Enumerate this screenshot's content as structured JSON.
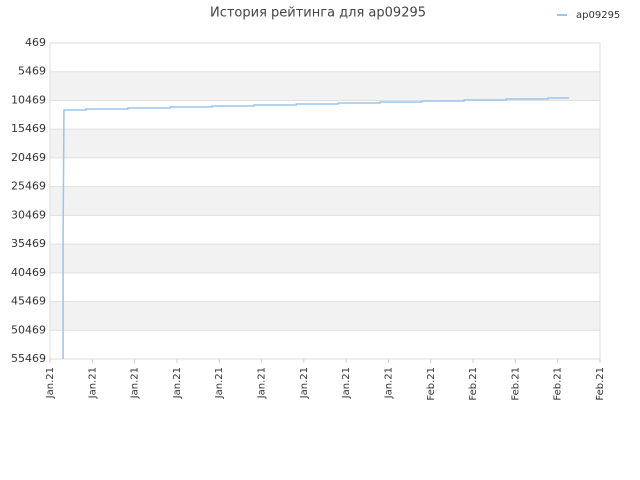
{
  "chart_data": {
    "type": "line",
    "title": "История рейтинга для ap09295",
    "x": [
      0.31,
      0.31,
      0.33,
      0.85,
      0.85,
      1.84,
      1.84,
      2.84,
      2.84,
      3.83,
      3.83,
      4.82,
      4.82,
      5.82,
      5.82,
      6.81,
      6.81,
      7.8,
      7.8,
      8.79,
      8.79,
      9.79,
      9.79,
      10.78,
      10.78,
      11.77,
      11.77,
      12.27
    ],
    "series": [
      {
        "name": "ap09295",
        "color": "#99c5ee",
        "values": [
          55469,
          33887,
          12130,
          12130,
          11956,
          11956,
          11782,
          11782,
          11608,
          11608,
          11434,
          11434,
          11260,
          11260,
          11086,
          11086,
          10912,
          10912,
          10738,
          10738,
          10564,
          10564,
          10390,
          10390,
          10216,
          10216,
          10042,
          10042
        ]
      }
    ],
    "xlim": [
      0,
      13
    ],
    "xticks": [
      {
        "value": 0,
        "label": "Jan.21"
      },
      {
        "value": 1,
        "label": "Jan.21"
      },
      {
        "value": 2,
        "label": "Jan.21"
      },
      {
        "value": 3,
        "label": "Jan.21"
      },
      {
        "value": 4,
        "label": "Jan.21"
      },
      {
        "value": 5,
        "label": "Jan.21"
      },
      {
        "value": 6,
        "label": "Jan.21"
      },
      {
        "value": 7,
        "label": "Jan.21"
      },
      {
        "value": 8,
        "label": "Jan.21"
      },
      {
        "value": 9,
        "label": "Feb.21"
      },
      {
        "value": 10,
        "label": "Feb.21"
      },
      {
        "value": 11,
        "label": "Feb.21"
      },
      {
        "value": 12,
        "label": "Feb.21"
      },
      {
        "value": 13,
        "label": "Feb.21"
      }
    ],
    "ylim": [
      469,
      55469
    ],
    "yticks": [
      469,
      5469,
      10469,
      15469,
      20469,
      25469,
      30469,
      35469,
      40469,
      45469,
      50469,
      55469
    ],
    "y_inverted": true,
    "grid": true,
    "legend": "top-right"
  }
}
